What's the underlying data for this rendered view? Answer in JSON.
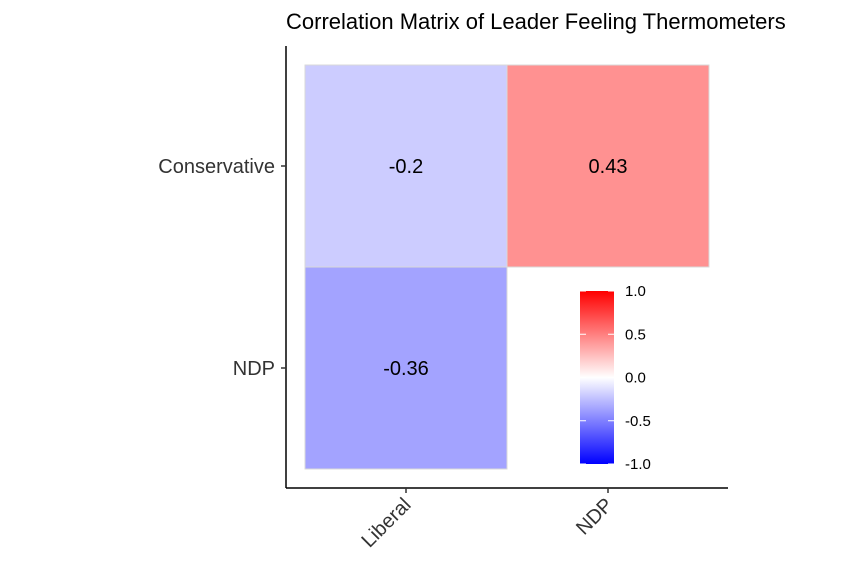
{
  "chart_data": {
    "type": "heatmap",
    "title": "Correlation Matrix of Leader Feeling Thermometers",
    "xlabel": "",
    "ylabel": "",
    "x_categories": [
      "Liberal",
      "NDP"
    ],
    "y_categories": [
      "Conservative",
      "NDP"
    ],
    "cells": [
      {
        "x": "Liberal",
        "y": "Conservative",
        "value": -0.2,
        "label": "-0.2"
      },
      {
        "x": "NDP",
        "y": "Conservative",
        "value": 0.43,
        "label": "0.43"
      },
      {
        "x": "Liberal",
        "y": "NDP",
        "value": -0.36,
        "label": "-0.36"
      }
    ],
    "color_scale": {
      "low_color": "#0000ff",
      "mid_color": "#ffffff",
      "high_color": "#ff0000",
      "range": [
        -1,
        1
      ],
      "ticks": [
        1.0,
        0.5,
        0.0,
        -0.5,
        -1.0
      ],
      "tick_labels": [
        "1.0",
        "0.5",
        "0.0",
        "-0.5",
        "-1.0"
      ]
    },
    "legend_position": "inside-bottom-right",
    "grid": false
  }
}
